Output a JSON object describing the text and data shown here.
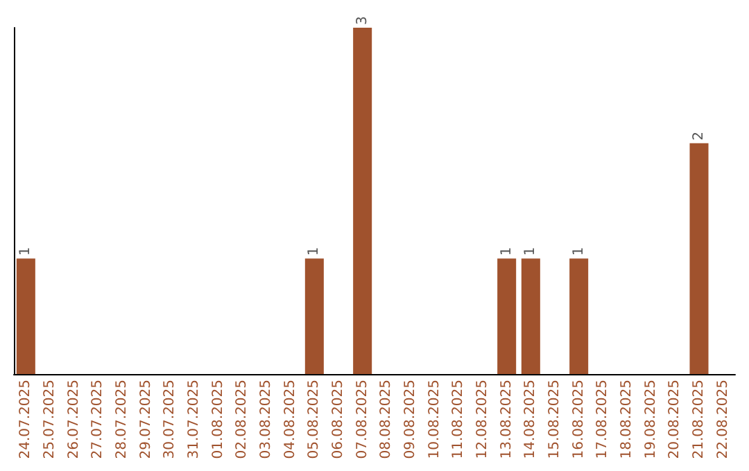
{
  "chart_data": {
    "type": "bar",
    "categories": [
      "24.07.2025",
      "25.07.2025",
      "26.07.2025",
      "27.07.2025",
      "28.07.2025",
      "29.07.2025",
      "30.07.2025",
      "31.07.2025",
      "01.08.2025",
      "02.08.2025",
      "03.08.2025",
      "04.08.2025",
      "05.08.2025",
      "06.08.2025",
      "07.08.2025",
      "08.08.2025",
      "09.08.2025",
      "10.08.2025",
      "11.08.2025",
      "12.08.2025",
      "13.08.2025",
      "14.08.2025",
      "15.08.2025",
      "16.08.2025",
      "17.08.2025",
      "18.08.2025",
      "19.08.2025",
      "20.08.2025",
      "21.08.2025",
      "22.08.2025"
    ],
    "values": [
      1,
      0,
      0,
      0,
      0,
      0,
      0,
      0,
      0,
      0,
      0,
      0,
      1,
      0,
      3,
      0,
      0,
      0,
      0,
      0,
      1,
      1,
      0,
      1,
      0,
      0,
      0,
      0,
      2,
      0
    ],
    "value_labels": [
      "1",
      null,
      null,
      null,
      null,
      null,
      null,
      null,
      null,
      null,
      null,
      null,
      "1",
      null,
      "3",
      null,
      null,
      null,
      null,
      null,
      "1",
      "1",
      null,
      "1",
      null,
      null,
      null,
      null,
      "2",
      null
    ],
    "color": "#a0522d",
    "tick_labels": "x"
  }
}
